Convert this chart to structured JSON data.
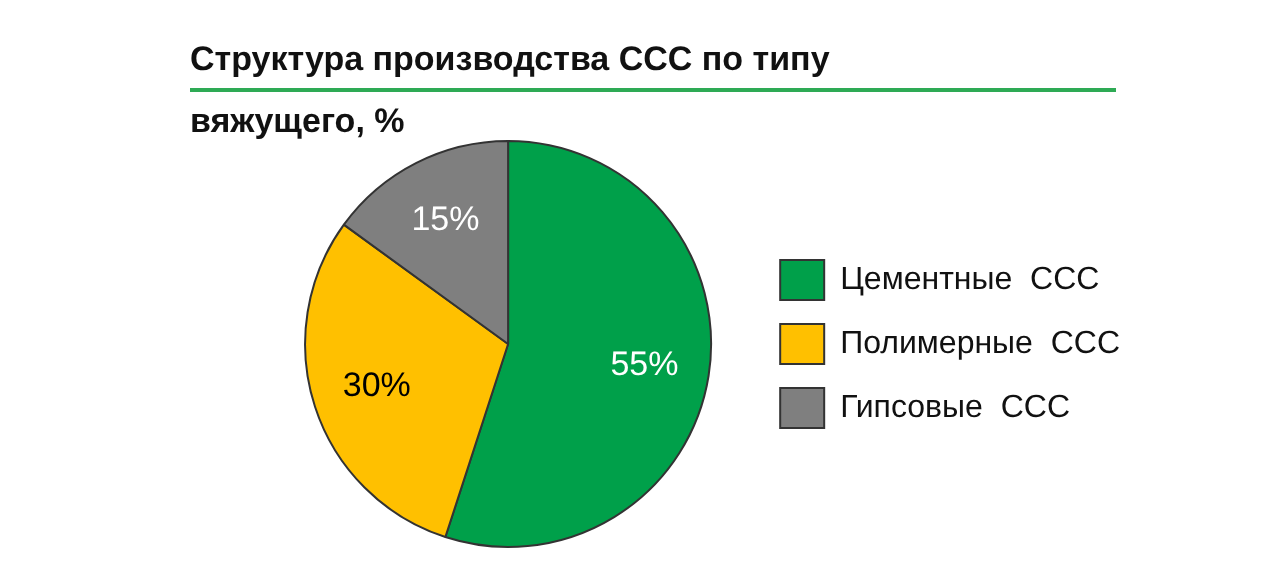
{
  "chart_data": {
    "type": "pie",
    "title": "Структура  производства ССС по типу вяжущего, %",
    "categories": [
      "Цементные  ССС",
      "Полимерные  ССС",
      "Гипсовые  ССС"
    ],
    "values": [
      55,
      30,
      15
    ],
    "colors": [
      "#00a04a",
      "#ffc000",
      "#7f7f7f"
    ],
    "value_labels": [
      "55%",
      "30%",
      "15%"
    ],
    "legend": "right"
  }
}
